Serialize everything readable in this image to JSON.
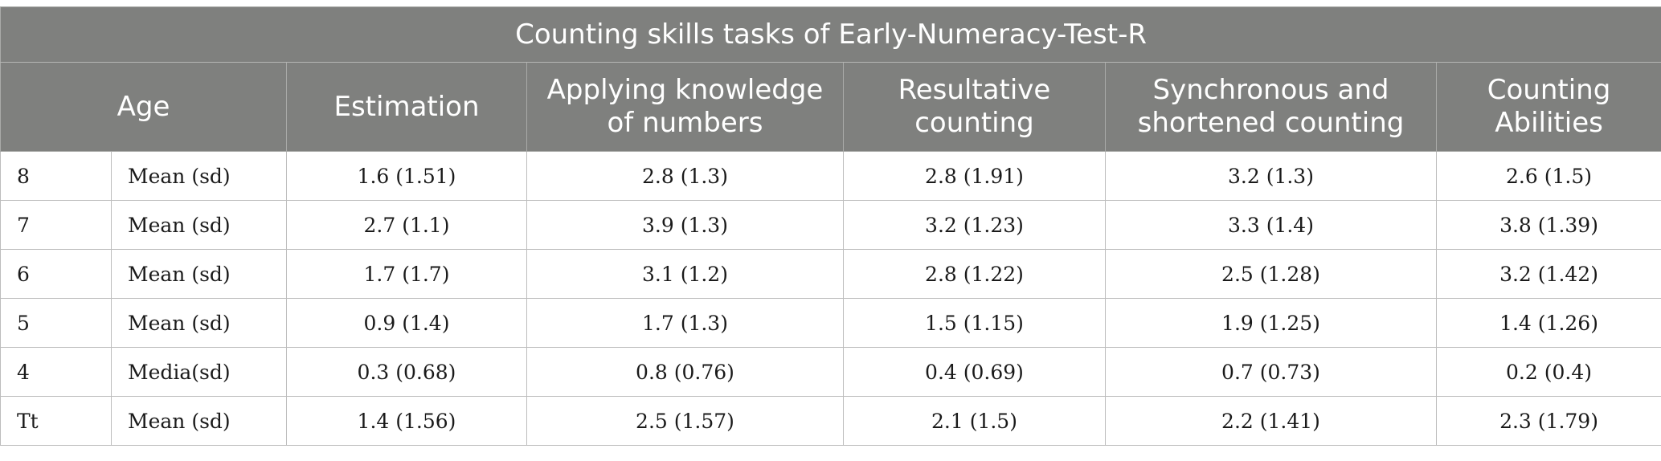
{
  "table": {
    "title": "Counting skills tasks of Early-Numeracy-Test-R",
    "columns": {
      "age": "Age",
      "estimation": "Estimation",
      "applying_knowledge": "Applying knowledge of numbers",
      "resultative_counting": "Resultative counting",
      "synchronous_counting": "Synchronous and shortened counting",
      "counting_abilities": "Counting Abilities"
    },
    "rows": [
      {
        "age": "8",
        "stat": "Mean (sd)",
        "estimation": "1.6 (1.51)",
        "applying_knowledge": "2.8 (1.3)",
        "resultative_counting": "2.8 (1.91)",
        "synchronous_counting": "3.2 (1.3)",
        "counting_abilities": "2.6 (1.5)"
      },
      {
        "age": "7",
        "stat": "Mean (sd)",
        "estimation": "2.7 (1.1)",
        "applying_knowledge": "3.9 (1.3)",
        "resultative_counting": "3.2 (1.23)",
        "synchronous_counting": "3.3 (1.4)",
        "counting_abilities": "3.8 (1.39)"
      },
      {
        "age": "6",
        "stat": "Mean (sd)",
        "estimation": "1.7 (1.7)",
        "applying_knowledge": "3.1 (1.2)",
        "resultative_counting": "2.8 (1.22)",
        "synchronous_counting": "2.5 (1.28)",
        "counting_abilities": "3.2 (1.42)"
      },
      {
        "age": "5",
        "stat": "Mean (sd)",
        "estimation": "0.9 (1.4)",
        "applying_knowledge": "1.7 (1.3)",
        "resultative_counting": "1.5 (1.15)",
        "synchronous_counting": "1.9 (1.25)",
        "counting_abilities": "1.4 (1.26)"
      },
      {
        "age": "4",
        "stat": "Media(sd)",
        "estimation": "0.3 (0.68)",
        "applying_knowledge": "0.8 (0.76)",
        "resultative_counting": "0.4 (0.69)",
        "synchronous_counting": "0.7 (0.73)",
        "counting_abilities": "0.2 (0.4)"
      },
      {
        "age": "Tt",
        "stat": "Mean (sd)",
        "estimation": "1.4 (1.56)",
        "applying_knowledge": "2.5 (1.57)",
        "resultative_counting": "2.1 (1.5)",
        "synchronous_counting": "2.2 (1.41)",
        "counting_abilities": "2.3 (1.79)"
      }
    ]
  },
  "colors": {
    "header_background": "#7f807e",
    "header_text": "#ffffff",
    "grid_line": "#bdbdbd"
  }
}
